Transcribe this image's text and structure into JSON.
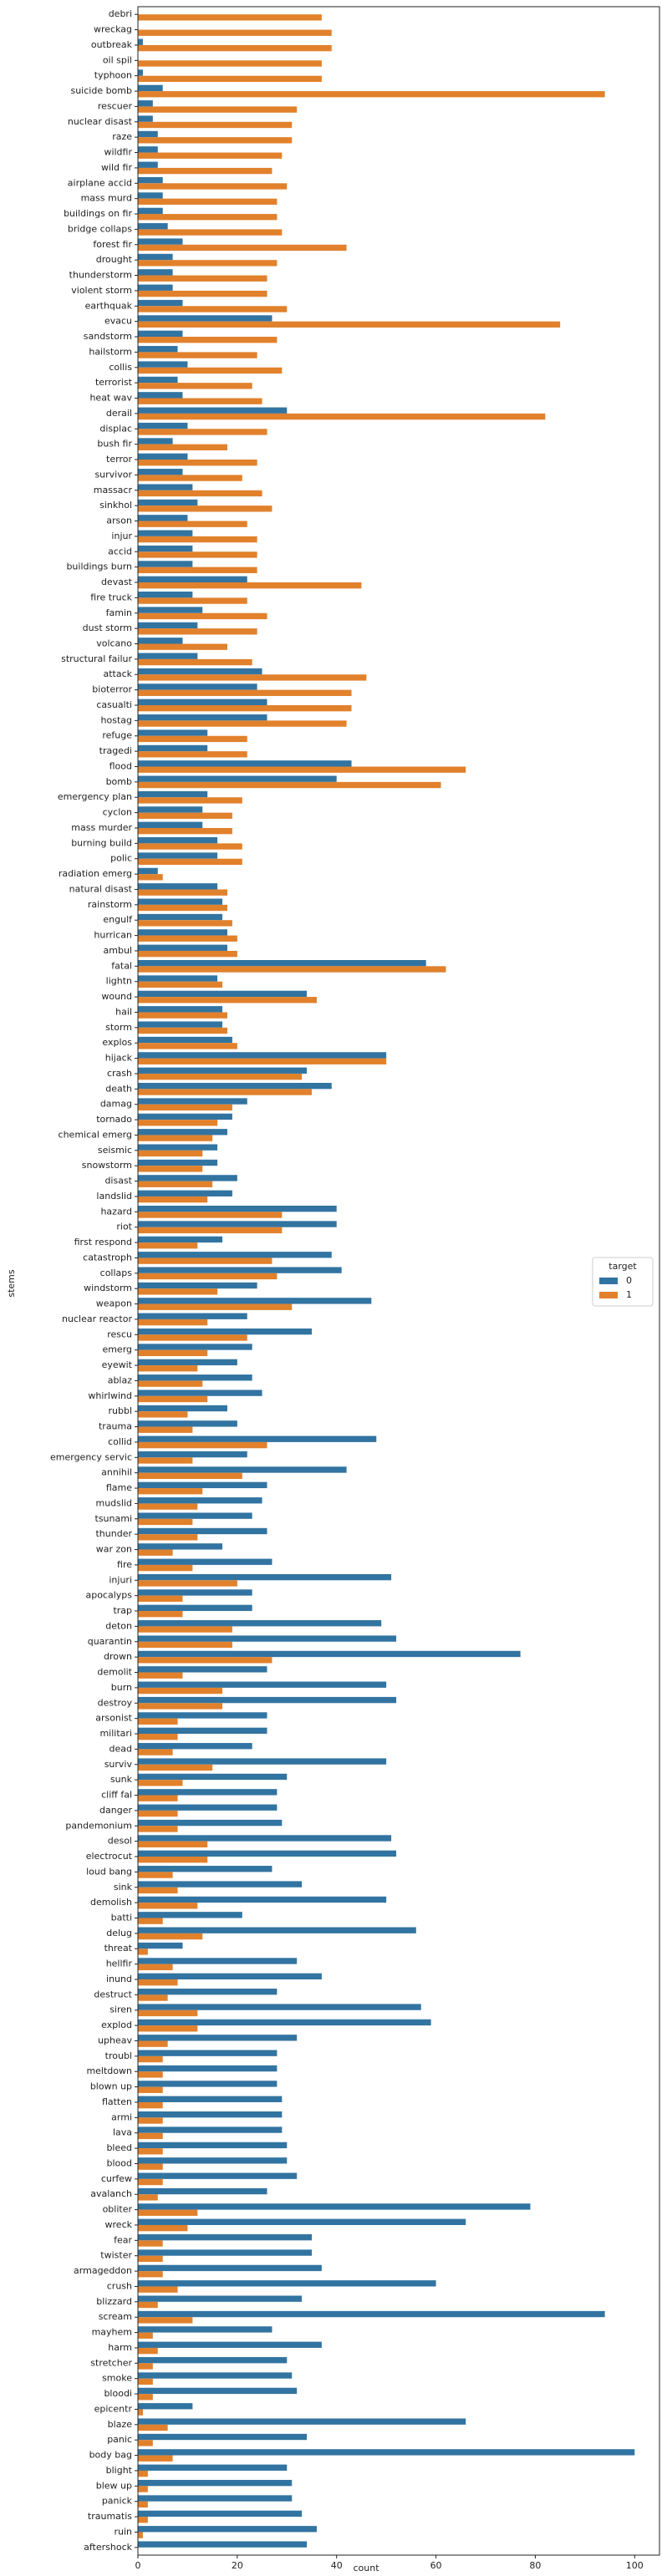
{
  "chart_data": {
    "type": "barh_grouped",
    "x_label": "count",
    "y_label": "stems",
    "legend_title": "target",
    "legend_position": "center right",
    "categories": [
      "debri",
      "wreckag",
      "outbreak",
      "oil spil",
      "typhoon",
      "suicide bomb",
      "rescuer",
      "nuclear disast",
      "raze",
      "wildfir",
      "wild fir",
      "airplane accid",
      "mass murd",
      "buildings on fir",
      "bridge collaps",
      "forest fir",
      "drought",
      "thunderstorm",
      "violent storm",
      "earthquak",
      "evacu",
      "sandstorm",
      "hailstorm",
      "collis",
      "terrorist",
      "heat wav",
      "derail",
      "displac",
      "bush fir",
      "terror",
      "survivor",
      "massacr",
      "sinkhol",
      "arson",
      "injur",
      "accid",
      "buildings burn",
      "devast",
      "fire truck",
      "famin",
      "dust storm",
      "volcano",
      "structural failur",
      "attack",
      "bioterror",
      "casualti",
      "hostag",
      "refuge",
      "tragedi",
      "flood",
      "bomb",
      "emergency plan",
      "cyclon",
      "mass murder",
      "burning build",
      "polic",
      "radiation emerg",
      "natural disast",
      "rainstorm",
      "engulf",
      "hurrican",
      "ambul",
      "fatal",
      "lightn",
      "wound",
      "hail",
      "storm",
      "explos",
      "hijack",
      "crash",
      "death",
      "damag",
      "tornado",
      "chemical emerg",
      "seismic",
      "snowstorm",
      "disast",
      "landslid",
      "hazard",
      "riot",
      "first respond",
      "catastroph",
      "collaps",
      "windstorm",
      "weapon",
      "nuclear reactor",
      "rescu",
      "emerg",
      "eyewit",
      "ablaz",
      "whirlwind",
      "rubbl",
      "trauma",
      "collid",
      "emergency servic",
      "annihil",
      "flame",
      "mudslid",
      "tsunami",
      "thunder",
      "war zon",
      "fire",
      "injuri",
      "apocalyps",
      "trap",
      "deton",
      "quarantin",
      "drown",
      "demolit",
      "burn",
      "destroy",
      "arsonist",
      "militari",
      "dead",
      "surviv",
      "sunk",
      "cliff fal",
      "danger",
      "pandemonium",
      "desol",
      "electrocut",
      "loud bang",
      "sink",
      "demolish",
      "batti",
      "delug",
      "threat",
      "hellfir",
      "inund",
      "destruct",
      "siren",
      "explod",
      "upheav",
      "troubl",
      "meltdown",
      "blown up",
      "flatten",
      "armi",
      "lava",
      "bleed",
      "blood",
      "curfew",
      "avalanch",
      "obliter",
      "wreck",
      "fear",
      "twister",
      "armageddon",
      "crush",
      "blizzard",
      "scream",
      "mayhem",
      "harm",
      "stretcher",
      "smoke",
      "bloodi",
      "epicentr",
      "blaze",
      "panic",
      "body bag",
      "blight",
      "blew up",
      "panick",
      "traumatis",
      "ruin",
      "aftershock"
    ],
    "series": [
      {
        "name": "0",
        "color": "#3274a1",
        "values": [
          0,
          0,
          1,
          0,
          1,
          5,
          3,
          3,
          4,
          4,
          4,
          5,
          5,
          5,
          6,
          9,
          7,
          7,
          7,
          9,
          27,
          9,
          8,
          10,
          8,
          9,
          30,
          10,
          7,
          10,
          9,
          11,
          12,
          10,
          11,
          11,
          11,
          22,
          11,
          13,
          12,
          9,
          12,
          25,
          24,
          26,
          26,
          14,
          14,
          43,
          40,
          14,
          13,
          13,
          16,
          16,
          4,
          16,
          17,
          17,
          18,
          18,
          58,
          16,
          34,
          17,
          17,
          19,
          50,
          34,
          39,
          22,
          19,
          18,
          16,
          16,
          20,
          19,
          40,
          40,
          17,
          39,
          41,
          24,
          47,
          22,
          35,
          23,
          20,
          23,
          25,
          18,
          20,
          48,
          22,
          42,
          26,
          25,
          23,
          26,
          17,
          27,
          51,
          23,
          23,
          49,
          52,
          77,
          26,
          50,
          52,
          26,
          26,
          23,
          50,
          30,
          28,
          28,
          29,
          51,
          52,
          27,
          33,
          50,
          21,
          56,
          9,
          32,
          37,
          28,
          57,
          59,
          32,
          28,
          28,
          28,
          29,
          29,
          29,
          30,
          30,
          32,
          26,
          79,
          66,
          35,
          35,
          37,
          60,
          33,
          94,
          27,
          37,
          30,
          31,
          32,
          11,
          66,
          34,
          100,
          30,
          31,
          31,
          33,
          36,
          34
        ]
      },
      {
        "name": "1",
        "color": "#e1812c",
        "values": [
          37,
          39,
          39,
          37,
          37,
          94,
          32,
          31,
          31,
          29,
          27,
          30,
          28,
          28,
          29,
          42,
          28,
          26,
          26,
          30,
          85,
          28,
          24,
          29,
          23,
          25,
          82,
          26,
          18,
          24,
          21,
          25,
          27,
          22,
          24,
          24,
          24,
          45,
          22,
          26,
          24,
          18,
          23,
          46,
          43,
          43,
          42,
          22,
          22,
          66,
          61,
          21,
          19,
          19,
          21,
          21,
          5,
          18,
          18,
          19,
          20,
          20,
          62,
          17,
          36,
          18,
          18,
          20,
          50,
          33,
          35,
          19,
          16,
          15,
          13,
          13,
          15,
          14,
          29,
          29,
          12,
          27,
          28,
          16,
          31,
          14,
          22,
          14,
          12,
          13,
          14,
          10,
          11,
          26,
          11,
          21,
          13,
          12,
          11,
          12,
          7,
          11,
          20,
          9,
          9,
          19,
          19,
          27,
          9,
          17,
          17,
          8,
          8,
          7,
          15,
          9,
          8,
          8,
          8,
          14,
          14,
          7,
          8,
          12,
          5,
          13,
          2,
          7,
          8,
          6,
          12,
          12,
          6,
          5,
          5,
          5,
          5,
          5,
          5,
          5,
          5,
          5,
          4,
          12,
          10,
          5,
          5,
          5,
          8,
          4,
          11,
          3,
          4,
          3,
          3,
          3,
          1,
          6,
          3,
          7,
          2,
          2,
          2,
          2,
          1,
          0
        ]
      }
    ],
    "xlim": [
      0,
      105
    ],
    "xticks": [
      0,
      20,
      40,
      60,
      80,
      100
    ]
  }
}
